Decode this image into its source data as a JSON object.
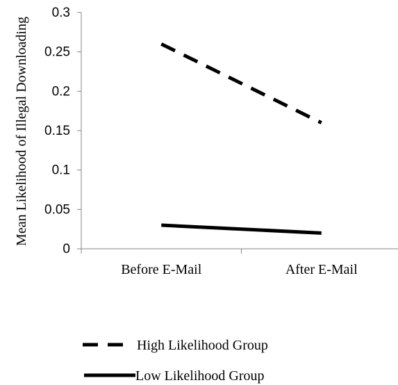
{
  "chart_data": {
    "type": "line",
    "title": "",
    "xlabel": "",
    "ylabel": "Mean Likelihood of Illegal Downloading",
    "categories": [
      "Before E-Mail",
      "After E-Mail"
    ],
    "ylim": [
      0,
      0.3
    ],
    "yticks": [
      "0",
      "0.05",
      "0.1",
      "0.15",
      "0.2",
      "0.25",
      "0.3"
    ],
    "grid": false,
    "legend_position": "bottom",
    "series": [
      {
        "name": "High Likelihood Group",
        "values": [
          0.26,
          0.16
        ],
        "style": "dashed",
        "color": "#000000"
      },
      {
        "name": "Low Likelihood Group",
        "values": [
          0.03,
          0.02
        ],
        "style": "solid",
        "color": "#000000"
      }
    ]
  }
}
